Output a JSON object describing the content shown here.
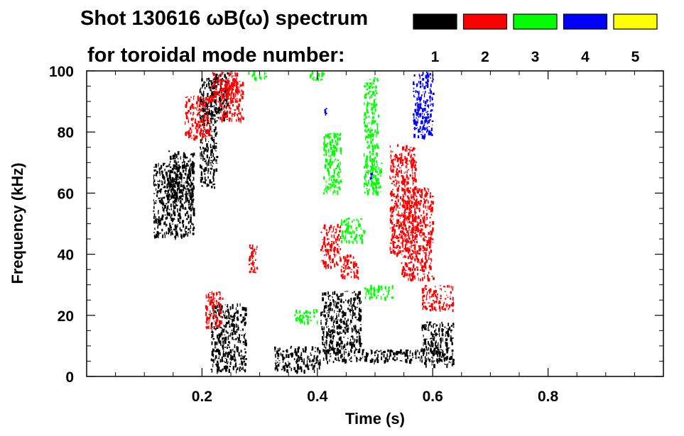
{
  "chart_data": {
    "type": "spectrogram",
    "title": "Shot 130616 ωB(ω) spectrum",
    "subtitle": "for toroidal mode number:",
    "xlabel": "Time (s)",
    "ylabel": "Frequency (kHz)",
    "xlim": [
      0.0,
      1.0
    ],
    "ylim": [
      0,
      100
    ],
    "x_ticks": [
      0.2,
      0.4,
      0.6,
      0.8
    ],
    "x_tick_labels": [
      "0.2",
      "0.4",
      "0.6",
      "0.8"
    ],
    "y_ticks": [
      0,
      20,
      40,
      60,
      80,
      100
    ],
    "y_tick_labels": [
      "0",
      "20",
      "40",
      "60",
      "80",
      "100"
    ],
    "grid": false,
    "legend_placement": "top-right",
    "legend": [
      {
        "label": "1",
        "color": "#000000"
      },
      {
        "label": "2",
        "color": "#ff0000"
      },
      {
        "label": "3",
        "color": "#00ff00"
      },
      {
        "label": "4",
        "color": "#0000ff"
      },
      {
        "label": "5",
        "color": "#ffff00"
      }
    ],
    "series": [
      {
        "name": "1",
        "color": "#000000",
        "regions": [
          {
            "t": [
              0.115,
              0.185
            ],
            "f": [
              46,
              70
            ]
          },
          {
            "t": [
              0.14,
              0.185
            ],
            "f": [
              58,
              74
            ]
          },
          {
            "t": [
              0.195,
              0.225
            ],
            "f": [
              62,
              98
            ]
          },
          {
            "t": [
              0.215,
              0.245
            ],
            "f": [
              84,
              100
            ]
          },
          {
            "t": [
              0.215,
              0.275
            ],
            "f": [
              2,
              24
            ]
          },
          {
            "t": [
              0.325,
              0.405
            ],
            "f": [
              2,
              10
            ]
          },
          {
            "t": [
              0.405,
              0.475
            ],
            "f": [
              8,
              28
            ]
          },
          {
            "t": [
              0.41,
              0.62
            ],
            "f": [
              5,
              9
            ]
          },
          {
            "t": [
              0.58,
              0.635
            ],
            "f": [
              4,
              18
            ]
          }
        ]
      },
      {
        "name": "2",
        "color": "#ff0000",
        "regions": [
          {
            "t": [
              0.17,
              0.215
            ],
            "f": [
              78,
              92
            ]
          },
          {
            "t": [
              0.215,
              0.26
            ],
            "f": [
              90,
              100
            ]
          },
          {
            "t": [
              0.23,
              0.27
            ],
            "f": [
              84,
              98
            ]
          },
          {
            "t": [
              0.205,
              0.235
            ],
            "f": [
              16,
              28
            ]
          },
          {
            "t": [
              0.28,
              0.295
            ],
            "f": [
              34,
              44
            ]
          },
          {
            "t": [
              0.405,
              0.44
            ],
            "f": [
              36,
              50
            ]
          },
          {
            "t": [
              0.44,
              0.47
            ],
            "f": [
              32,
              40
            ]
          },
          {
            "t": [
              0.525,
              0.57
            ],
            "f": [
              40,
              76
            ]
          },
          {
            "t": [
              0.545,
              0.6
            ],
            "f": [
              32,
              62
            ]
          },
          {
            "t": [
              0.58,
              0.635
            ],
            "f": [
              22,
              30
            ]
          }
        ]
      },
      {
        "name": "3",
        "color": "#00ff00",
        "regions": [
          {
            "t": [
              0.28,
              0.31
            ],
            "f": [
              98,
              100
            ]
          },
          {
            "t": [
              0.385,
              0.41
            ],
            "f": [
              97,
              100
            ]
          },
          {
            "t": [
              0.41,
              0.44
            ],
            "f": [
              60,
              80
            ]
          },
          {
            "t": [
              0.48,
              0.505
            ],
            "f": [
              60,
              98
            ]
          },
          {
            "t": [
              0.495,
              0.51
            ],
            "f": [
              60,
              70
            ]
          },
          {
            "t": [
              0.44,
              0.48
            ],
            "f": [
              44,
              52
            ]
          },
          {
            "t": [
              0.48,
              0.53
            ],
            "f": [
              26,
              30
            ]
          },
          {
            "t": [
              0.36,
              0.4
            ],
            "f": [
              18,
              22
            ]
          }
        ]
      },
      {
        "name": "4",
        "color": "#0000ff",
        "regions": [
          {
            "t": [
              0.565,
              0.6
            ],
            "f": [
              78,
              100
            ]
          },
          {
            "t": [
              0.41,
              0.415
            ],
            "f": [
              86,
              88
            ]
          },
          {
            "t": [
              0.49,
              0.495
            ],
            "f": [
              65,
              67
            ]
          }
        ]
      },
      {
        "name": "5",
        "color": "#ffff00",
        "regions": []
      }
    ]
  }
}
